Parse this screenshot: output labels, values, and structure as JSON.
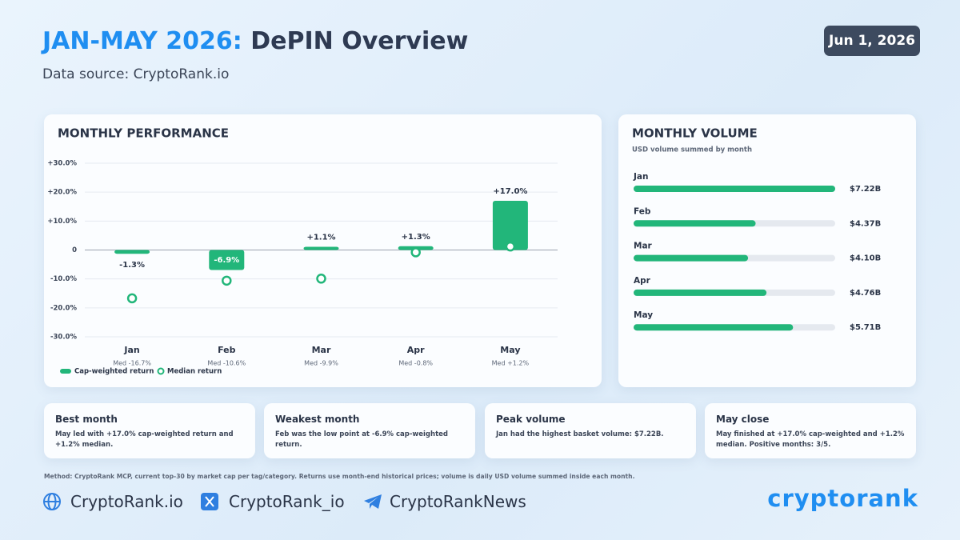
{
  "header": {
    "title_highlight": "JAN-MAY 2026:",
    "title": "DePIN Overview",
    "source": "Data source: CryptoRank.io",
    "date": "Jun 1, 2026"
  },
  "chart_data": [
    {
      "type": "bar",
      "title": "MONTHLY PERFORMANCE",
      "categories": [
        "Jan",
        "Feb",
        "Mar",
        "Apr",
        "May"
      ],
      "series": [
        {
          "name": "Cap-weighted return",
          "type": "bar",
          "color": "#22b67a",
          "values": [
            -1.3,
            -6.9,
            1.1,
            1.3,
            17.0
          ],
          "value_labels": [
            "-1.3%",
            "-6.9%",
            "+1.1%",
            "+1.3%",
            "+17.0%"
          ]
        },
        {
          "name": "Median return",
          "type": "point",
          "color": "#22b67a",
          "values": [
            -16.7,
            -10.6,
            -9.9,
            -0.8,
            1.2
          ],
          "value_labels": [
            "Med -16.7%",
            "Med -10.6%",
            "Med -9.9%",
            "Med -0.8%",
            "Med +1.2%"
          ]
        }
      ],
      "ylim": [
        -30,
        30
      ],
      "yticks": [
        {
          "value": 30,
          "label": "+30.0%"
        },
        {
          "value": 20,
          "label": "+20.0%"
        },
        {
          "value": 10,
          "label": "+10.0%"
        },
        0,
        {
          "value": -10,
          "label": "-10.0%"
        },
        {
          "value": -20,
          "label": "-20.0%"
        },
        {
          "value": -30,
          "label": "-30.0%"
        }
      ],
      "grid": true
    },
    {
      "type": "bar",
      "orientation": "horizontal",
      "title": "MONTHLY VOLUME",
      "subtitle": "USD volume summed by month",
      "categories": [
        "Jan",
        "Feb",
        "Mar",
        "Apr",
        "May"
      ],
      "values": [
        7.22,
        4.37,
        4.1,
        4.76,
        5.71
      ],
      "value_labels": [
        "$7.22B",
        "$4.37B",
        "$4.10B",
        "$4.76B",
        "$5.71B"
      ],
      "color": "#22b67a",
      "track_color": "#e5e9ef"
    }
  ],
  "cards": [
    {
      "title": "Best month",
      "text": "May led with +17.0% cap-weighted return and +1.2% median."
    },
    {
      "title": "Weakest month",
      "text": "Feb was the low point at -6.9% cap-weighted return."
    },
    {
      "title": "Peak volume",
      "text": "Jan had the highest basket volume: $7.22B."
    },
    {
      "title": "May close",
      "text": "May finished at +17.0% cap-weighted and +1.2% median. Positive months: 3/5."
    }
  ],
  "footer": {
    "method": "Method: CryptoRank MCP, current top-30 by market cap per tag/category. Returns use month-end historical prices; volume is daily USD volume summed inside each month.",
    "links": [
      "CryptoRank.io",
      "CryptoRank_io",
      "CryptoRankNews"
    ],
    "logo": "cryptorank"
  }
}
